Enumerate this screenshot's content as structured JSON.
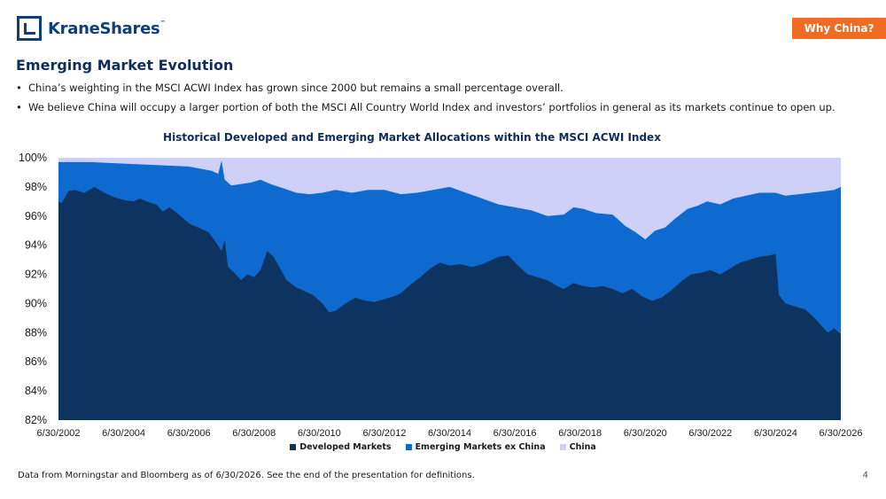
{
  "brand": {
    "name": "KraneShares",
    "mark": "™"
  },
  "section_tag": "Why China?",
  "slide_title": "Emerging Market Evolution",
  "bullets": [
    "China’s weighting in the MSCI ACWI Index has grown since 2000 but remains a small percentage overall.",
    "We believe China will occupy a larger portion of both the MSCI All Country World Index and investors’ portfolios in general as its markets continue to open up."
  ],
  "footnote": "Data from Morningstar and Bloomberg as of 6/30/2026. See the end of the presentation for definitions.",
  "page_number": "4",
  "colors": {
    "developed": "#0d3461",
    "em_ex_china": "#0f6ad0",
    "china": "#cfd0f7",
    "accent": "#f26b22",
    "brand": "#0f3f7a"
  },
  "chart_data": {
    "type": "area",
    "stacked": true,
    "title": "Historical Developed and Emerging Market Allocations within the MSCI ACWI Index",
    "xlabel": "",
    "ylabel": "",
    "ylim": [
      82,
      100
    ],
    "yticks": [
      "82%",
      "84%",
      "86%",
      "88%",
      "90%",
      "92%",
      "94%",
      "96%",
      "98%",
      "100%"
    ],
    "xticks": [
      "6/30/2002",
      "6/30/2004",
      "6/30/2006",
      "6/30/2008",
      "6/30/2010",
      "6/30/2012",
      "6/30/2014",
      "6/30/2016",
      "6/30/2018",
      "6/30/2020",
      "6/30/2022",
      "6/30/2024",
      "6/30/2026"
    ],
    "x_start": 2002.5,
    "x_end": 2026.5,
    "legend_position": "bottom",
    "series": [
      {
        "name": "Developed Markets",
        "points": [
          [
            2002.5,
            97.0
          ],
          [
            2002.6,
            96.9
          ],
          [
            2002.8,
            97.7
          ],
          [
            2003.0,
            97.8
          ],
          [
            2003.3,
            97.6
          ],
          [
            2003.6,
            98.0
          ],
          [
            2003.9,
            97.6
          ],
          [
            2004.2,
            97.3
          ],
          [
            2004.5,
            97.1
          ],
          [
            2004.8,
            97.0
          ],
          [
            2005.0,
            97.2
          ],
          [
            2005.2,
            97.0
          ],
          [
            2005.5,
            96.8
          ],
          [
            2005.7,
            96.3
          ],
          [
            2005.9,
            96.6
          ],
          [
            2006.2,
            96.1
          ],
          [
            2006.5,
            95.5
          ],
          [
            2006.8,
            95.2
          ],
          [
            2007.1,
            94.9
          ],
          [
            2007.3,
            94.3
          ],
          [
            2007.5,
            93.6
          ],
          [
            2007.6,
            94.4
          ],
          [
            2007.7,
            92.5
          ],
          [
            2007.9,
            92.1
          ],
          [
            2008.1,
            91.6
          ],
          [
            2008.3,
            92.0
          ],
          [
            2008.5,
            91.8
          ],
          [
            2008.7,
            92.3
          ],
          [
            2008.9,
            93.6
          ],
          [
            2009.1,
            93.2
          ],
          [
            2009.3,
            92.4
          ],
          [
            2009.5,
            91.6
          ],
          [
            2009.8,
            91.1
          ],
          [
            2010.0,
            90.9
          ],
          [
            2010.3,
            90.6
          ],
          [
            2010.6,
            90.0
          ],
          [
            2010.8,
            89.4
          ],
          [
            2011.0,
            89.5
          ],
          [
            2011.3,
            90.0
          ],
          [
            2011.6,
            90.4
          ],
          [
            2011.9,
            90.2
          ],
          [
            2012.2,
            90.1
          ],
          [
            2012.5,
            90.3
          ],
          [
            2012.8,
            90.5
          ],
          [
            2013.0,
            90.7
          ],
          [
            2013.3,
            91.3
          ],
          [
            2013.6,
            91.8
          ],
          [
            2013.9,
            92.4
          ],
          [
            2014.2,
            92.8
          ],
          [
            2014.5,
            92.6
          ],
          [
            2014.8,
            92.7
          ],
          [
            2015.2,
            92.5
          ],
          [
            2015.5,
            92.7
          ],
          [
            2015.8,
            93.0
          ],
          [
            2016.0,
            93.2
          ],
          [
            2016.3,
            93.3
          ],
          [
            2016.6,
            92.6
          ],
          [
            2016.9,
            92.0
          ],
          [
            2017.2,
            91.8
          ],
          [
            2017.5,
            91.6
          ],
          [
            2017.8,
            91.2
          ],
          [
            2018.0,
            91.0
          ],
          [
            2018.3,
            91.4
          ],
          [
            2018.6,
            91.2
          ],
          [
            2018.9,
            91.1
          ],
          [
            2019.2,
            91.2
          ],
          [
            2019.5,
            91.0
          ],
          [
            2019.8,
            90.7
          ],
          [
            2020.1,
            91.0
          ],
          [
            2020.4,
            90.5
          ],
          [
            2020.7,
            90.2
          ],
          [
            2021.0,
            90.4
          ],
          [
            2021.3,
            90.9
          ],
          [
            2021.6,
            91.5
          ],
          [
            2021.9,
            92.0
          ],
          [
            2022.2,
            92.1
          ],
          [
            2022.5,
            92.3
          ],
          [
            2022.8,
            92.0
          ],
          [
            2023.1,
            92.4
          ],
          [
            2023.4,
            92.8
          ],
          [
            2023.7,
            93.0
          ],
          [
            2024.0,
            93.2
          ],
          [
            2024.3,
            93.3
          ],
          [
            2024.5,
            93.4
          ],
          [
            2024.6,
            90.6
          ],
          [
            2024.8,
            90.0
          ],
          [
            2025.1,
            89.8
          ],
          [
            2025.4,
            89.6
          ],
          [
            2025.7,
            89.0
          ],
          [
            2025.9,
            88.5
          ],
          [
            2026.1,
            88.0
          ],
          [
            2026.3,
            88.3
          ],
          [
            2026.5,
            87.9
          ]
        ]
      },
      {
        "name": "Emerging Markets ex China",
        "points": [
          [
            2002.5,
            99.7
          ],
          [
            2003.5,
            99.7
          ],
          [
            2004.5,
            99.6
          ],
          [
            2005.5,
            99.5
          ],
          [
            2006.5,
            99.4
          ],
          [
            2007.2,
            99.1
          ],
          [
            2007.4,
            98.9
          ],
          [
            2007.5,
            99.8
          ],
          [
            2007.6,
            98.5
          ],
          [
            2007.8,
            98.1
          ],
          [
            2008.1,
            98.2
          ],
          [
            2008.4,
            98.3
          ],
          [
            2008.7,
            98.5
          ],
          [
            2009.0,
            98.2
          ],
          [
            2009.4,
            97.9
          ],
          [
            2009.8,
            97.6
          ],
          [
            2010.2,
            97.5
          ],
          [
            2010.6,
            97.6
          ],
          [
            2011.0,
            97.8
          ],
          [
            2011.5,
            97.6
          ],
          [
            2012.0,
            97.8
          ],
          [
            2012.5,
            97.8
          ],
          [
            2013.0,
            97.5
          ],
          [
            2013.5,
            97.6
          ],
          [
            2014.0,
            97.8
          ],
          [
            2014.5,
            98.0
          ],
          [
            2015.0,
            97.6
          ],
          [
            2015.5,
            97.2
          ],
          [
            2016.0,
            96.8
          ],
          [
            2016.5,
            96.6
          ],
          [
            2017.0,
            96.4
          ],
          [
            2017.5,
            96.0
          ],
          [
            2018.0,
            96.1
          ],
          [
            2018.3,
            96.6
          ],
          [
            2018.6,
            96.5
          ],
          [
            2019.0,
            96.2
          ],
          [
            2019.5,
            96.1
          ],
          [
            2019.9,
            95.3
          ],
          [
            2020.2,
            94.9
          ],
          [
            2020.5,
            94.4
          ],
          [
            2020.8,
            95.0
          ],
          [
            2021.1,
            95.2
          ],
          [
            2021.4,
            95.8
          ],
          [
            2021.8,
            96.5
          ],
          [
            2022.1,
            96.7
          ],
          [
            2022.4,
            97.0
          ],
          [
            2022.8,
            96.8
          ],
          [
            2023.2,
            97.2
          ],
          [
            2023.6,
            97.4
          ],
          [
            2024.0,
            97.6
          ],
          [
            2024.5,
            97.6
          ],
          [
            2024.8,
            97.4
          ],
          [
            2025.2,
            97.5
          ],
          [
            2025.6,
            97.6
          ],
          [
            2026.0,
            97.7
          ],
          [
            2026.3,
            97.8
          ],
          [
            2026.5,
            98.0
          ]
        ]
      },
      {
        "name": "China",
        "points": [
          [
            2002.5,
            100.0
          ],
          [
            2026.5,
            100.0
          ]
        ]
      }
    ]
  }
}
